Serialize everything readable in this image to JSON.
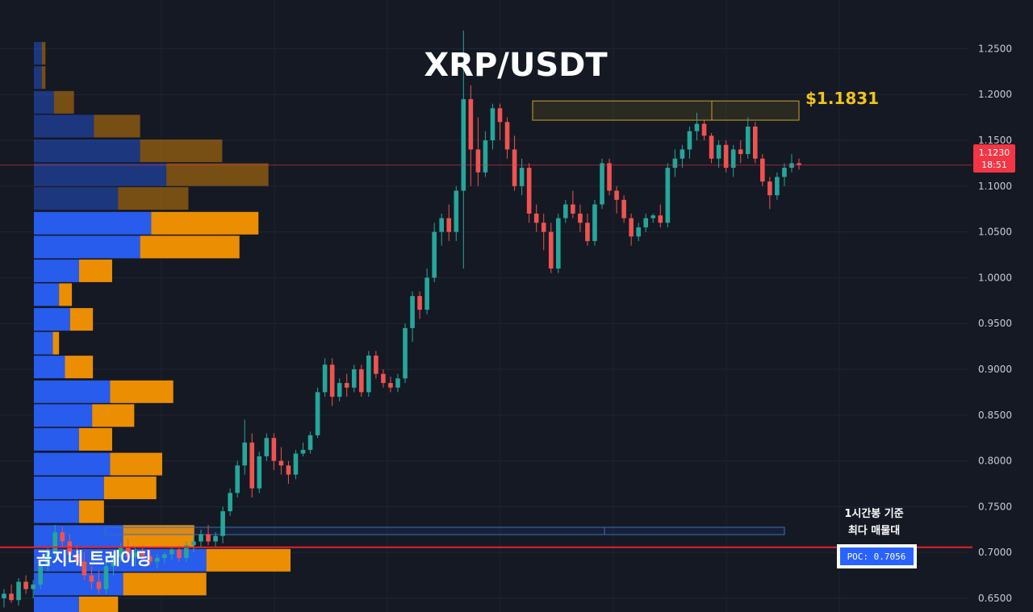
{
  "chart_data": {
    "type": "candlestick",
    "title": "XRP/USDT",
    "ylim": [
      0.635,
      1.29
    ],
    "yticks": [
      "1.2500",
      "1.2000",
      "1.1500",
      "1.1000",
      "1.0500",
      "1.0000",
      "0.9500",
      "0.9000",
      "0.8500",
      "0.8000",
      "0.7500",
      "0.7000",
      "0.6500"
    ],
    "price": {
      "value": "1.1230",
      "countdown": "18:51",
      "color": "#f23645",
      "level": 1.123
    },
    "resistance": {
      "label": "$1.1831",
      "value": 1.1831,
      "band": [
        1.172,
        1.193
      ],
      "color": "#f0c419"
    },
    "poc": {
      "label": "POC: 0.7056",
      "value": 0.7056,
      "color": "#e0242b"
    },
    "poc_zone": [
      0.7195,
      0.7275
    ],
    "annotation": [
      "1시간봉 기준",
      "최다 매물대"
    ],
    "watermark": "곰지네 트레이딩",
    "colors": {
      "up": "#26a69a",
      "down": "#ef5350",
      "buy_volume": "#2962ff",
      "sell_volume": "#ff9800"
    },
    "candles": [
      [
        0.65,
        0.66,
        0.64,
        0.655
      ],
      [
        0.655,
        0.665,
        0.645,
        0.648
      ],
      [
        0.648,
        0.672,
        0.642,
        0.668
      ],
      [
        0.668,
        0.675,
        0.655,
        0.66
      ],
      [
        0.66,
        0.67,
        0.65,
        0.665
      ],
      [
        0.665,
        0.69,
        0.66,
        0.685
      ],
      [
        0.685,
        0.705,
        0.68,
        0.7
      ],
      [
        0.7,
        0.73,
        0.695,
        0.722
      ],
      [
        0.722,
        0.728,
        0.705,
        0.712
      ],
      [
        0.712,
        0.72,
        0.695,
        0.698
      ],
      [
        0.698,
        0.708,
        0.685,
        0.69
      ],
      [
        0.69,
        0.7,
        0.67,
        0.675
      ],
      [
        0.675,
        0.685,
        0.66,
        0.668
      ],
      [
        0.668,
        0.68,
        0.655,
        0.66
      ],
      [
        0.66,
        0.69,
        0.655,
        0.685
      ],
      [
        0.685,
        0.7,
        0.675,
        0.695
      ],
      [
        0.695,
        0.71,
        0.69,
        0.705
      ],
      [
        0.705,
        0.715,
        0.69,
        0.695
      ],
      [
        0.695,
        0.705,
        0.685,
        0.7
      ],
      [
        0.7,
        0.708,
        0.692,
        0.696
      ],
      [
        0.696,
        0.702,
        0.686,
        0.69
      ],
      [
        0.69,
        0.698,
        0.682,
        0.694
      ],
      [
        0.694,
        0.7,
        0.688,
        0.698
      ],
      [
        0.698,
        0.706,
        0.692,
        0.703
      ],
      [
        0.703,
        0.708,
        0.69,
        0.694
      ],
      [
        0.694,
        0.712,
        0.69,
        0.708
      ],
      [
        0.708,
        0.718,
        0.7,
        0.712
      ],
      [
        0.712,
        0.725,
        0.705,
        0.72
      ],
      [
        0.72,
        0.73,
        0.708,
        0.712
      ],
      [
        0.712,
        0.722,
        0.705,
        0.718
      ],
      [
        0.718,
        0.75,
        0.71,
        0.745
      ],
      [
        0.745,
        0.77,
        0.74,
        0.765
      ],
      [
        0.765,
        0.8,
        0.76,
        0.795
      ],
      [
        0.795,
        0.845,
        0.785,
        0.82
      ],
      [
        0.82,
        0.83,
        0.76,
        0.77
      ],
      [
        0.77,
        0.81,
        0.765,
        0.805
      ],
      [
        0.805,
        0.83,
        0.8,
        0.825
      ],
      [
        0.825,
        0.83,
        0.79,
        0.8
      ],
      [
        0.8,
        0.815,
        0.785,
        0.795
      ],
      [
        0.795,
        0.8,
        0.775,
        0.785
      ],
      [
        0.785,
        0.812,
        0.78,
        0.808
      ],
      [
        0.808,
        0.82,
        0.805,
        0.812
      ],
      [
        0.812,
        0.832,
        0.808,
        0.828
      ],
      [
        0.828,
        0.88,
        0.825,
        0.875
      ],
      [
        0.875,
        0.912,
        0.87,
        0.905
      ],
      [
        0.905,
        0.912,
        0.86,
        0.87
      ],
      [
        0.87,
        0.89,
        0.865,
        0.885
      ],
      [
        0.885,
        0.895,
        0.87,
        0.88
      ],
      [
        0.88,
        0.905,
        0.875,
        0.9
      ],
      [
        0.9,
        0.905,
        0.87,
        0.875
      ],
      [
        0.875,
        0.92,
        0.87,
        0.915
      ],
      [
        0.915,
        0.92,
        0.89,
        0.895
      ],
      [
        0.895,
        0.9,
        0.88,
        0.885
      ],
      [
        0.885,
        0.892,
        0.875,
        0.88
      ],
      [
        0.88,
        0.895,
        0.875,
        0.89
      ],
      [
        0.89,
        0.95,
        0.885,
        0.945
      ],
      [
        0.945,
        0.985,
        0.93,
        0.98
      ],
      [
        0.98,
        0.985,
        0.955,
        0.965
      ],
      [
        0.965,
        1.01,
        0.96,
        1.0
      ],
      [
        1.0,
        1.06,
        0.995,
        1.05
      ],
      [
        1.05,
        1.07,
        1.035,
        1.065
      ],
      [
        1.065,
        1.08,
        1.04,
        1.05
      ],
      [
        1.05,
        1.1,
        1.04,
        1.095
      ],
      [
        1.095,
        1.27,
        1.01,
        1.195
      ],
      [
        1.195,
        1.21,
        1.1,
        1.14
      ],
      [
        1.14,
        1.175,
        1.1,
        1.115
      ],
      [
        1.115,
        1.16,
        1.11,
        1.15
      ],
      [
        1.15,
        1.19,
        1.14,
        1.185
      ],
      [
        1.185,
        1.19,
        1.15,
        1.17
      ],
      [
        1.17,
        1.175,
        1.13,
        1.14
      ],
      [
        1.14,
        1.155,
        1.095,
        1.1
      ],
      [
        1.1,
        1.13,
        1.09,
        1.12
      ],
      [
        1.12,
        1.125,
        1.06,
        1.07
      ],
      [
        1.07,
        1.08,
        1.05,
        1.06
      ],
      [
        1.06,
        1.07,
        1.03,
        1.05
      ],
      [
        1.05,
        1.06,
        1.005,
        1.01
      ],
      [
        1.01,
        1.07,
        1.005,
        1.065
      ],
      [
        1.065,
        1.085,
        1.06,
        1.08
      ],
      [
        1.08,
        1.095,
        1.065,
        1.07
      ],
      [
        1.07,
        1.08,
        1.05,
        1.06
      ],
      [
        1.06,
        1.07,
        1.035,
        1.04
      ],
      [
        1.04,
        1.085,
        1.035,
        1.08
      ],
      [
        1.08,
        1.13,
        1.075,
        1.125
      ],
      [
        1.125,
        1.13,
        1.09,
        1.095
      ],
      [
        1.095,
        1.1,
        1.07,
        1.085
      ],
      [
        1.085,
        1.09,
        1.06,
        1.065
      ],
      [
        1.065,
        1.07,
        1.035,
        1.045
      ],
      [
        1.045,
        1.06,
        1.04,
        1.055
      ],
      [
        1.055,
        1.07,
        1.05,
        1.065
      ],
      [
        1.065,
        1.07,
        1.06,
        1.068
      ],
      [
        1.068,
        1.08,
        1.055,
        1.06
      ],
      [
        1.06,
        1.125,
        1.055,
        1.12
      ],
      [
        1.12,
        1.14,
        1.11,
        1.13
      ],
      [
        1.13,
        1.145,
        1.12,
        1.14
      ],
      [
        1.14,
        1.165,
        1.13,
        1.16
      ],
      [
        1.16,
        1.18,
        1.15,
        1.168
      ],
      [
        1.168,
        1.172,
        1.15,
        1.155
      ],
      [
        1.155,
        1.158,
        1.125,
        1.13
      ],
      [
        1.13,
        1.15,
        1.12,
        1.145
      ],
      [
        1.145,
        1.15,
        1.115,
        1.12
      ],
      [
        1.12,
        1.145,
        1.11,
        1.14
      ],
      [
        1.14,
        1.15,
        1.125,
        1.135
      ],
      [
        1.135,
        1.175,
        1.13,
        1.165
      ],
      [
        1.165,
        1.17,
        1.125,
        1.13
      ],
      [
        1.13,
        1.135,
        1.1,
        1.105
      ],
      [
        1.105,
        1.11,
        1.075,
        1.09
      ],
      [
        1.09,
        1.115,
        1.085,
        1.11
      ],
      [
        1.11,
        1.125,
        1.1,
        1.12
      ],
      [
        1.12,
        1.135,
        1.115,
        1.125
      ],
      [
        1.125,
        1.13,
        1.118,
        1.123
      ]
    ],
    "volume_profile": [
      {
        "price": 1.245,
        "buy": 0.031,
        "sell": 0.045,
        "faded": true
      },
      {
        "price": 1.2185,
        "buy": 0.031,
        "sell": 0.045,
        "faded": true
      },
      {
        "price": 1.1915,
        "buy": 0.078,
        "sell": 0.156,
        "faded": true
      },
      {
        "price": 1.1655,
        "buy": 0.234,
        "sell": 0.414,
        "faded": true
      },
      {
        "price": 1.1385,
        "buy": 0.414,
        "sell": 0.734,
        "faded": true
      },
      {
        "price": 1.1125,
        "buy": 0.516,
        "sell": 0.914,
        "faded": true
      },
      {
        "price": 1.0865,
        "buy": 0.328,
        "sell": 0.602,
        "faded": true
      },
      {
        "price": 1.0595,
        "buy": 0.457,
        "sell": 0.875,
        "faded": false
      },
      {
        "price": 1.0335,
        "buy": 0.414,
        "sell": 0.801,
        "faded": false
      },
      {
        "price": 1.0075,
        "buy": 0.176,
        "sell": 0.305,
        "faded": false
      },
      {
        "price": 0.9815,
        "buy": 0.098,
        "sell": 0.148,
        "faded": false
      },
      {
        "price": 0.9545,
        "buy": 0.141,
        "sell": 0.23,
        "faded": false
      },
      {
        "price": 0.9285,
        "buy": 0.074,
        "sell": 0.098,
        "faded": false
      },
      {
        "price": 0.9025,
        "buy": 0.121,
        "sell": 0.23,
        "faded": false
      },
      {
        "price": 0.8755,
        "buy": 0.297,
        "sell": 0.543,
        "faded": false
      },
      {
        "price": 0.8495,
        "buy": 0.227,
        "sell": 0.391,
        "faded": false
      },
      {
        "price": 0.8235,
        "buy": 0.176,
        "sell": 0.305,
        "faded": false
      },
      {
        "price": 0.7965,
        "buy": 0.297,
        "sell": 0.5,
        "faded": false
      },
      {
        "price": 0.7705,
        "buy": 0.273,
        "sell": 0.477,
        "faded": false
      },
      {
        "price": 0.7445,
        "buy": 0.176,
        "sell": 0.273,
        "faded": false
      },
      {
        "price": 0.7175,
        "buy": 0.348,
        "sell": 0.625,
        "faded": false
      },
      {
        "price": 0.6915,
        "buy": 0.672,
        "sell": 1.0,
        "faded": false
      },
      {
        "price": 0.6655,
        "buy": 0.348,
        "sell": 0.672,
        "faded": false
      },
      {
        "price": 0.6395,
        "buy": 0.176,
        "sell": 0.328,
        "faded": false
      }
    ]
  }
}
